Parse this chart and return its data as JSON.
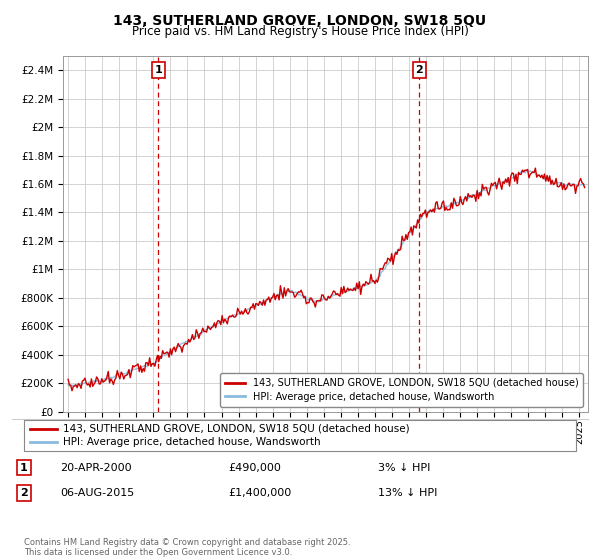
{
  "title": "143, SUTHERLAND GROVE, LONDON, SW18 5QU",
  "subtitle": "Price paid vs. HM Land Registry's House Price Index (HPI)",
  "ylim": [
    0,
    2500000
  ],
  "yticks": [
    0,
    200000,
    400000,
    600000,
    800000,
    1000000,
    1200000,
    1400000,
    1600000,
    1800000,
    2000000,
    2200000,
    2400000
  ],
  "ytick_labels": [
    "£0",
    "£200K",
    "£400K",
    "£600K",
    "£800K",
    "£1M",
    "£1.2M",
    "£1.4M",
    "£1.6M",
    "£1.8M",
    "£2M",
    "£2.2M",
    "£2.4M"
  ],
  "xlim_min": 1994.7,
  "xlim_max": 2025.5,
  "sale1_date": 2000.3,
  "sale1_label": "1",
  "sale2_date": 2015.6,
  "sale2_label": "2",
  "legend_line1": "143, SUTHERLAND GROVE, LONDON, SW18 5QU (detached house)",
  "legend_line2": "HPI: Average price, detached house, Wandsworth",
  "ann1_box": "1",
  "ann1_date": "20-APR-2000",
  "ann1_price": "£490,000",
  "ann1_hpi": "3% ↓ HPI",
  "ann2_box": "2",
  "ann2_date": "06-AUG-2015",
  "ann2_price": "£1,400,000",
  "ann2_hpi": "13% ↓ HPI",
  "footer": "Contains HM Land Registry data © Crown copyright and database right 2025.\nThis data is licensed under the Open Government Licence v3.0.",
  "line_color_red": "#cc0000",
  "line_color_blue": "#88bbdd",
  "vline_color": "#cc0000",
  "box_color": "#cc0000",
  "background_color": "#ffffff",
  "grid_color": "#cccccc"
}
